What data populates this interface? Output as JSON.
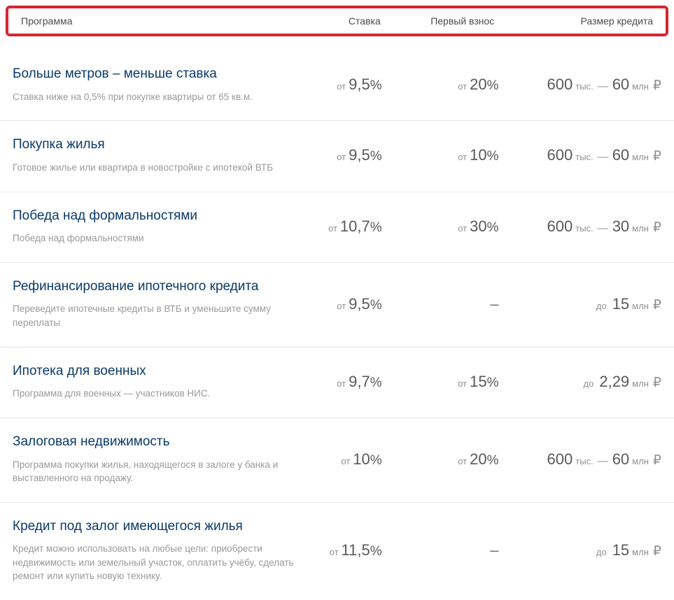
{
  "header": {
    "col_program": "Программа",
    "col_rate": "Ставка",
    "col_down": "Первый взнос",
    "col_amount": "Размер кредита"
  },
  "labels": {
    "from": "от",
    "to": "до",
    "thousand": "тыс.",
    "million": "млн",
    "rub": "₽",
    "range_sep": "—",
    "dash": "–",
    "pct": "%"
  },
  "rows": [
    {
      "title": "Больше метров – меньше ставка",
      "desc": "Ставка ниже на 0,5% при покупке квартиры от 65 кв.м.",
      "rate": {
        "prefix": "from",
        "value": "9,5"
      },
      "down": {
        "prefix": "from",
        "value": "20"
      },
      "amount": {
        "type": "range",
        "from_num": "600",
        "from_unit": "thousand",
        "to_num": "60",
        "to_unit": "million"
      }
    },
    {
      "title": "Покупка жилья",
      "desc": "Готовое жилье или квартира в новостройке с ипотекой ВТБ",
      "rate": {
        "prefix": "from",
        "value": "9,5"
      },
      "down": {
        "prefix": "from",
        "value": "10"
      },
      "amount": {
        "type": "range",
        "from_num": "600",
        "from_unit": "thousand",
        "to_num": "60",
        "to_unit": "million"
      }
    },
    {
      "title": "Победа над формальностями",
      "desc": "Победа над формальностями",
      "rate": {
        "prefix": "from",
        "value": "10,7"
      },
      "down": {
        "prefix": "from",
        "value": "30"
      },
      "amount": {
        "type": "range",
        "from_num": "600",
        "from_unit": "thousand",
        "to_num": "30",
        "to_unit": "million"
      }
    },
    {
      "title": "Рефинансирование ипотечного кредита",
      "desc": "Переведите ипотечные кредиты в ВТБ и уменьшите сумму переплаты",
      "rate": {
        "prefix": "from",
        "value": "9,5"
      },
      "down": {
        "type": "dash"
      },
      "amount": {
        "type": "upto",
        "num": "15",
        "unit": "million"
      }
    },
    {
      "title": "Ипотека для военных",
      "desc": "Программа для военных — участников НИС.",
      "rate": {
        "prefix": "from",
        "value": "9,7"
      },
      "down": {
        "prefix": "from",
        "value": "15"
      },
      "amount": {
        "type": "upto",
        "num": "2,29",
        "unit": "million"
      }
    },
    {
      "title": "Залоговая недвижимость",
      "desc": "Программа покупки жилья, находящегося в залоге у банка и выставленного на продажу.",
      "rate": {
        "prefix": "from",
        "value": "10"
      },
      "down": {
        "prefix": "from",
        "value": "20"
      },
      "amount": {
        "type": "range",
        "from_num": "600",
        "from_unit": "thousand",
        "to_num": "60",
        "to_unit": "million"
      }
    },
    {
      "title": "Кредит под залог имеющегося жилья",
      "desc": "Кредит можно использовать на любые цели: приобрести недвижимость или земельный участок, оплатить учёбу, сделать ремонт или купить новую технику.",
      "rate": {
        "prefix": "from",
        "value": "11,5"
      },
      "down": {
        "type": "dash"
      },
      "amount": {
        "type": "upto",
        "num": "15",
        "unit": "million"
      }
    }
  ],
  "style": {
    "highlight_border_color": "#d3272f",
    "title_color": "#0a3a68",
    "desc_color": "#9a9a9a",
    "value_color": "#595959",
    "muted_color": "#8f8f8f",
    "divider_color": "#e6e6e6",
    "background_color": "#ffffff",
    "title_fontsize": 19,
    "desc_fontsize": 13.5,
    "value_fontsize": 22,
    "prefix_fontsize": 13,
    "header_fontsize": 14
  }
}
